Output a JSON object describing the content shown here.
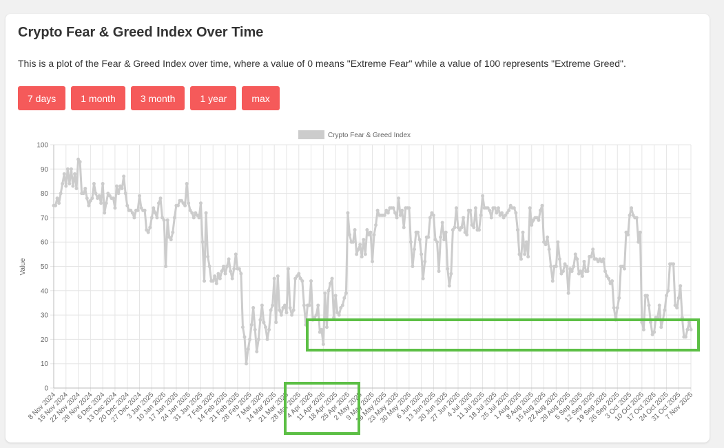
{
  "header": {
    "title": "Crypto Fear & Greed Index Over Time",
    "description": "This is a plot of the Fear & Greed Index over time, where a value of 0 means \"Extreme Fear\" while a value of 100 represents \"Extreme Greed\"."
  },
  "buttons": [
    "7 days",
    "1 month",
    "3 month",
    "1 year",
    "max"
  ],
  "chart_data": {
    "type": "line",
    "ylabel": "Value",
    "ylim": [
      0,
      100
    ],
    "yticks": [
      0,
      10,
      20,
      30,
      40,
      50,
      60,
      70,
      80,
      90,
      100
    ],
    "grid": true,
    "legend": "top",
    "categories": [
      "8 Nov 2024",
      null,
      null,
      null,
      null,
      null,
      null,
      "15 Nov 2024",
      null,
      null,
      null,
      null,
      null,
      null,
      "22 Nov 2024",
      null,
      null,
      null,
      null,
      null,
      null,
      "29 Nov 2024",
      null,
      null,
      null,
      null,
      null,
      null,
      "6 Dec 2024",
      null,
      null,
      null,
      null,
      null,
      null,
      "13 Dec 2024",
      null,
      null,
      null,
      null,
      null,
      null,
      "20 Dec 2024",
      null,
      null,
      null,
      null,
      null,
      null,
      "27 Dec 2024",
      null,
      null,
      null,
      null,
      null,
      null,
      "3 Jan 2025",
      null,
      null,
      null,
      null,
      null,
      null,
      "10 Jan 2025",
      null,
      null,
      null,
      null,
      null,
      null,
      "17 Jan 2025",
      null,
      null,
      null,
      null,
      null,
      null,
      "24 Jan 2025",
      null,
      null,
      null,
      null,
      null,
      null,
      "31 Jan 2025",
      null,
      null,
      null,
      null,
      null,
      null,
      "7 Feb 2025",
      null,
      null,
      null,
      null,
      null,
      null,
      "14 Feb 2025",
      null,
      null,
      null,
      null,
      null,
      null,
      "21 Feb 2025",
      null,
      null,
      null,
      null,
      null,
      null,
      "28 Feb 2025",
      null,
      null,
      null,
      null,
      null,
      null,
      "7 Mar 2025",
      null,
      null,
      null,
      null,
      null,
      null,
      "14 Mar 2025",
      null,
      null,
      null,
      null,
      null,
      null,
      "21 Mar 2025",
      null,
      null,
      null,
      null,
      null,
      null,
      "28 Mar 2025",
      null,
      null,
      null,
      null,
      null,
      null,
      "4 Apr 2025",
      null,
      null,
      null,
      null,
      null,
      null,
      "11 Apr 2025",
      null,
      null,
      null,
      null,
      null,
      null,
      "18 Apr 2025",
      null,
      null,
      null,
      null,
      null,
      null,
      "25 Apr 2025",
      null,
      null,
      null,
      null,
      null,
      null,
      "2 May 2025",
      null,
      null,
      null,
      null,
      null,
      null,
      "9 May 2025",
      null,
      null,
      null,
      null,
      null,
      null,
      "16 May 2025",
      null,
      null,
      null,
      null,
      null,
      null,
      "23 May 2025",
      null,
      null,
      null,
      null,
      null,
      null,
      "30 May 2025",
      null,
      null,
      null,
      null,
      null,
      null,
      "6 Jun 2025",
      null,
      null,
      null,
      null,
      null,
      null,
      "13 Jun 2025",
      null,
      null,
      null,
      null,
      null,
      null,
      "20 Jun 2025",
      null,
      null,
      null,
      null,
      null,
      null,
      "27 Jun 2025",
      null,
      null,
      null,
      null,
      null,
      null,
      "4 Jul 2025",
      null,
      null,
      null,
      null,
      null,
      null,
      "11 Jul 2025",
      null,
      null,
      null,
      null,
      null,
      null,
      "18 Jul 2025",
      null,
      null,
      null,
      null,
      null,
      null,
      "25 Jul 2025",
      null,
      null,
      null,
      null,
      null,
      null,
      "1 Aug 2025",
      null,
      null,
      null,
      null,
      null,
      null,
      "8 Aug 2025",
      null,
      null,
      null,
      null,
      null,
      null,
      "15 Aug 2025",
      null,
      null,
      null,
      null,
      null,
      null,
      "22 Aug 2025",
      null,
      null,
      null,
      null,
      null,
      null,
      "29 Aug 2025",
      null,
      null,
      null,
      null,
      null,
      null,
      "5 Sep 2025",
      null,
      null,
      null,
      null,
      null,
      null,
      "12 Sep 2025",
      null,
      null,
      null,
      null,
      null,
      null,
      "19 Sep 2025",
      null,
      null,
      null,
      null,
      null,
      null,
      "26 Sep 2025",
      null,
      null,
      null,
      null,
      null,
      null,
      "3 Oct 2025",
      null,
      null,
      null,
      null,
      null,
      null,
      "10 Oct 2025",
      null,
      null,
      null,
      null,
      null,
      null,
      "17 Oct 2025",
      null,
      null,
      null,
      null,
      null,
      null,
      "24 Oct 2025",
      null,
      null,
      null,
      null,
      null,
      null,
      "31 Oct 2025",
      null,
      null,
      null,
      null,
      null,
      null,
      "7 Nov 2025"
    ],
    "series": [
      {
        "name": "Crypto Fear & Greed Index",
        "color": "#cccccc",
        "values": [
          75,
          75,
          78,
          76,
          80,
          84,
          88,
          83,
          90,
          84,
          90,
          83,
          88,
          82,
          94,
          93,
          80,
          80,
          82,
          78,
          75,
          77,
          78,
          84,
          80,
          78,
          79,
          76,
          84,
          72,
          76,
          80,
          79,
          78,
          78,
          74,
          83,
          80,
          83,
          82,
          87,
          80,
          75,
          73,
          73,
          72,
          70,
          73,
          73,
          79,
          74,
          73,
          73,
          65,
          64,
          66,
          70,
          74,
          72,
          70,
          76,
          78,
          70,
          69,
          50,
          69,
          62,
          61,
          64,
          70,
          75,
          75,
          77,
          77,
          76,
          75,
          84,
          76,
          73,
          72,
          70,
          72,
          71,
          70,
          76,
          60,
          44,
          72,
          54,
          50,
          44,
          44,
          46,
          43,
          47,
          45,
          48,
          50,
          47,
          50,
          53,
          48,
          45,
          49,
          55,
          49,
          49,
          47,
          25,
          21,
          10,
          16,
          20,
          26,
          33,
          24,
          15,
          20,
          28,
          34,
          27,
          25,
          20,
          24,
          32,
          34,
          45,
          27,
          46,
          32,
          30,
          33,
          34,
          31,
          49,
          33,
          30,
          32,
          45,
          46,
          47,
          45,
          44,
          34,
          26,
          34,
          34,
          44,
          28,
          29,
          30,
          34,
          23,
          24,
          18,
          39,
          25,
          40,
          43,
          45,
          29,
          38,
          31,
          30,
          33,
          34,
          37,
          39,
          72,
          63,
          60,
          60,
          65,
          55,
          57,
          59,
          54,
          61,
          55,
          65,
          63,
          64,
          52,
          63,
          67,
          73,
          71,
          71,
          71,
          71,
          73,
          72,
          74,
          74,
          74,
          72,
          70,
          78,
          71,
          73,
          66,
          74,
          74,
          74,
          60,
          50,
          57,
          64,
          64,
          61,
          55,
          45,
          52,
          62,
          62,
          70,
          72,
          71,
          61,
          60,
          48,
          62,
          68,
          61,
          64,
          49,
          42,
          47,
          65,
          66,
          74,
          66,
          65,
          66,
          70,
          64,
          63,
          73,
          73,
          67,
          66,
          74,
          65,
          65,
          71,
          79,
          74,
          74,
          74,
          73,
          70,
          74,
          74,
          72,
          74,
          71,
          72,
          70,
          71,
          72,
          73,
          75,
          74,
          74,
          72,
          65,
          55,
          53,
          64,
          55,
          60,
          54,
          74,
          67,
          69,
          70,
          70,
          69,
          73,
          75,
          60,
          59,
          62,
          57,
          50,
          44,
          50,
          50,
          60,
          53,
          47,
          48,
          51,
          50,
          39,
          49,
          48,
          50,
          55,
          53,
          47,
          48,
          46,
          52,
          48,
          48,
          54,
          54,
          57,
          53,
          53,
          52,
          53,
          52,
          53,
          48,
          46,
          45,
          43,
          44,
          33,
          28,
          33,
          37,
          50,
          50,
          49,
          64,
          63,
          71,
          74,
          71,
          70,
          70,
          60,
          64,
          27,
          24,
          38,
          38,
          34,
          27,
          22,
          23,
          29,
          29,
          34,
          25,
          28,
          32,
          38,
          40,
          51,
          51,
          51,
          34,
          33,
          37,
          42,
          29,
          21,
          21,
          24,
          27,
          24
        ]
      }
    ]
  }
}
